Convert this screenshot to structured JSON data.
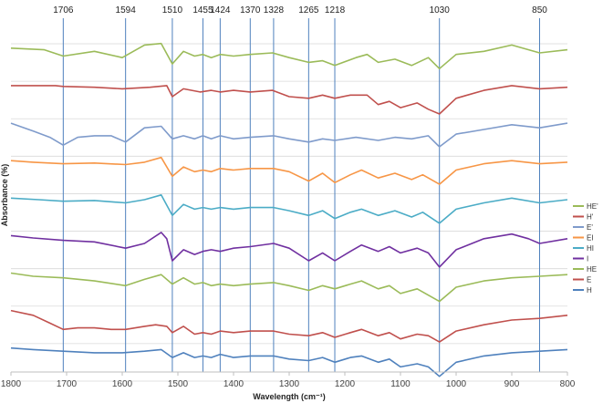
{
  "chart_data": {
    "type": "line",
    "title": "",
    "xlabel": "Wavelength (cm⁻¹)",
    "ylabel": "Absorbance (%)",
    "xlim": [
      1800,
      800
    ],
    "x_reversed": true,
    "x_ticks": [
      1800,
      1700,
      1600,
      1500,
      1400,
      1300,
      1200,
      1100,
      1000,
      900,
      800
    ],
    "y_tick_labels_shown": false,
    "grid": "horizontal baselines per spectrum",
    "legend_position": "right",
    "peak_markers": [
      1706,
      1594,
      1510,
      1455,
      1424,
      1370,
      1328,
      1265,
      1218,
      1030,
      850
    ],
    "series": [
      {
        "name": "HE'",
        "color": "#9BBB59",
        "offset": 8,
        "points": [
          [
            1800,
            0.0
          ],
          [
            1740,
            -0.1
          ],
          [
            1706,
            -0.5
          ],
          [
            1650,
            -0.2
          ],
          [
            1600,
            -0.6
          ],
          [
            1560,
            0.2
          ],
          [
            1530,
            0.3
          ],
          [
            1510,
            -1.0
          ],
          [
            1490,
            -0.2
          ],
          [
            1470,
            -0.5
          ],
          [
            1455,
            -0.4
          ],
          [
            1440,
            -0.6
          ],
          [
            1424,
            -0.4
          ],
          [
            1400,
            -0.5
          ],
          [
            1370,
            -0.4
          ],
          [
            1330,
            -0.3
          ],
          [
            1300,
            -0.6
          ],
          [
            1265,
            -0.9
          ],
          [
            1240,
            -0.8
          ],
          [
            1218,
            -1.1
          ],
          [
            1180,
            -0.6
          ],
          [
            1160,
            -0.4
          ],
          [
            1140,
            -0.9
          ],
          [
            1110,
            -0.7
          ],
          [
            1080,
            -1.1
          ],
          [
            1050,
            -0.6
          ],
          [
            1030,
            -1.3
          ],
          [
            1000,
            -0.4
          ],
          [
            950,
            -0.2
          ],
          [
            900,
            0.2
          ],
          [
            850,
            -0.3
          ],
          [
            800,
            -0.1
          ]
        ]
      },
      {
        "name": "H'",
        "color": "#C0504D",
        "offset": 7,
        "points": [
          [
            1800,
            0.0
          ],
          [
            1720,
            0.0
          ],
          [
            1706,
            -0.05
          ],
          [
            1650,
            -0.1
          ],
          [
            1600,
            -0.2
          ],
          [
            1550,
            -0.1
          ],
          [
            1520,
            0.0
          ],
          [
            1510,
            -0.7
          ],
          [
            1490,
            -0.2
          ],
          [
            1460,
            -0.4
          ],
          [
            1440,
            -0.3
          ],
          [
            1424,
            -0.4
          ],
          [
            1400,
            -0.3
          ],
          [
            1370,
            -0.4
          ],
          [
            1330,
            -0.3
          ],
          [
            1300,
            -0.7
          ],
          [
            1265,
            -0.8
          ],
          [
            1240,
            -0.6
          ],
          [
            1218,
            -0.8
          ],
          [
            1190,
            -0.6
          ],
          [
            1160,
            -0.6
          ],
          [
            1140,
            -1.2
          ],
          [
            1120,
            -1.0
          ],
          [
            1100,
            -1.4
          ],
          [
            1070,
            -1.1
          ],
          [
            1050,
            -1.5
          ],
          [
            1030,
            -1.8
          ],
          [
            1000,
            -0.8
          ],
          [
            950,
            -0.3
          ],
          [
            900,
            0.0
          ],
          [
            850,
            -0.2
          ],
          [
            800,
            -0.1
          ]
        ]
      },
      {
        "name": "E'",
        "color": "#8064A2",
        "offset": 6,
        "color_override": "#7F9BCB",
        "points": [
          [
            1800,
            0.0
          ],
          [
            1760,
            -0.5
          ],
          [
            1730,
            -0.9
          ],
          [
            1706,
            -1.4
          ],
          [
            1680,
            -0.9
          ],
          [
            1650,
            -0.8
          ],
          [
            1620,
            -0.8
          ],
          [
            1594,
            -1.2
          ],
          [
            1560,
            -0.3
          ],
          [
            1530,
            -0.2
          ],
          [
            1510,
            -1.0
          ],
          [
            1490,
            -0.8
          ],
          [
            1470,
            -1.0
          ],
          [
            1455,
            -0.8
          ],
          [
            1440,
            -1.0
          ],
          [
            1424,
            -0.8
          ],
          [
            1400,
            -1.0
          ],
          [
            1370,
            -0.9
          ],
          [
            1328,
            -0.8
          ],
          [
            1300,
            -1.0
          ],
          [
            1265,
            -1.2
          ],
          [
            1240,
            -1.0
          ],
          [
            1218,
            -1.1
          ],
          [
            1180,
            -0.9
          ],
          [
            1140,
            -1.1
          ],
          [
            1110,
            -0.9
          ],
          [
            1080,
            -1.0
          ],
          [
            1050,
            -0.8
          ],
          [
            1030,
            -1.5
          ],
          [
            1000,
            -0.7
          ],
          [
            950,
            -0.4
          ],
          [
            900,
            -0.1
          ],
          [
            850,
            -0.3
          ],
          [
            800,
            0.0
          ]
        ]
      },
      {
        "name": "EI",
        "color": "#F79646",
        "offset": 5,
        "points": [
          [
            1800,
            0.0
          ],
          [
            1760,
            -0.1
          ],
          [
            1706,
            -0.2
          ],
          [
            1650,
            -0.15
          ],
          [
            1594,
            -0.25
          ],
          [
            1560,
            -0.1
          ],
          [
            1530,
            0.2
          ],
          [
            1510,
            -1.0
          ],
          [
            1490,
            -0.4
          ],
          [
            1470,
            -0.7
          ],
          [
            1455,
            -0.6
          ],
          [
            1440,
            -0.7
          ],
          [
            1424,
            -0.5
          ],
          [
            1400,
            -0.6
          ],
          [
            1370,
            -0.5
          ],
          [
            1328,
            -0.5
          ],
          [
            1300,
            -0.7
          ],
          [
            1265,
            -1.3
          ],
          [
            1240,
            -0.8
          ],
          [
            1218,
            -1.4
          ],
          [
            1190,
            -0.9
          ],
          [
            1170,
            -0.6
          ],
          [
            1140,
            -1.1
          ],
          [
            1110,
            -0.8
          ],
          [
            1080,
            -1.2
          ],
          [
            1060,
            -0.9
          ],
          [
            1030,
            -1.5
          ],
          [
            1000,
            -0.6
          ],
          [
            950,
            -0.2
          ],
          [
            900,
            0.0
          ],
          [
            850,
            -0.2
          ],
          [
            800,
            -0.1
          ]
        ]
      },
      {
        "name": "HI",
        "color": "#4BACC6",
        "offset": 4,
        "points": [
          [
            1800,
            0.0
          ],
          [
            1750,
            -0.1
          ],
          [
            1706,
            -0.2
          ],
          [
            1650,
            -0.15
          ],
          [
            1594,
            -0.3
          ],
          [
            1560,
            -0.1
          ],
          [
            1530,
            0.2
          ],
          [
            1510,
            -1.1
          ],
          [
            1490,
            -0.4
          ],
          [
            1470,
            -0.7
          ],
          [
            1455,
            -0.6
          ],
          [
            1440,
            -0.7
          ],
          [
            1424,
            -0.6
          ],
          [
            1400,
            -0.7
          ],
          [
            1370,
            -0.6
          ],
          [
            1328,
            -0.6
          ],
          [
            1300,
            -0.8
          ],
          [
            1265,
            -1.1
          ],
          [
            1240,
            -0.8
          ],
          [
            1218,
            -1.3
          ],
          [
            1190,
            -0.9
          ],
          [
            1170,
            -0.7
          ],
          [
            1140,
            -1.1
          ],
          [
            1110,
            -0.8
          ],
          [
            1080,
            -1.2
          ],
          [
            1060,
            -0.9
          ],
          [
            1030,
            -1.6
          ],
          [
            1000,
            -0.7
          ],
          [
            950,
            -0.3
          ],
          [
            900,
            0.0
          ],
          [
            850,
            -0.3
          ],
          [
            800,
            -0.1
          ]
        ]
      },
      {
        "name": "I",
        "color": "#7030A0",
        "offset": 3,
        "points": [
          [
            1800,
            0.0
          ],
          [
            1760,
            -0.15
          ],
          [
            1706,
            -0.3
          ],
          [
            1650,
            -0.4
          ],
          [
            1594,
            -0.8
          ],
          [
            1560,
            -0.5
          ],
          [
            1530,
            0.2
          ],
          [
            1520,
            -0.2
          ],
          [
            1510,
            -1.6
          ],
          [
            1490,
            -0.9
          ],
          [
            1470,
            -1.2
          ],
          [
            1455,
            -1.0
          ],
          [
            1440,
            -0.9
          ],
          [
            1424,
            -1.0
          ],
          [
            1400,
            -0.8
          ],
          [
            1370,
            -0.7
          ],
          [
            1328,
            -0.5
          ],
          [
            1300,
            -0.8
          ],
          [
            1265,
            -1.6
          ],
          [
            1240,
            -1.1
          ],
          [
            1218,
            -1.6
          ],
          [
            1190,
            -1.0
          ],
          [
            1170,
            -0.6
          ],
          [
            1140,
            -1.0
          ],
          [
            1120,
            -0.7
          ],
          [
            1100,
            -1.1
          ],
          [
            1070,
            -0.8
          ],
          [
            1050,
            -1.1
          ],
          [
            1030,
            -2.0
          ],
          [
            1000,
            -0.9
          ],
          [
            950,
            -0.2
          ],
          [
            900,
            0.1
          ],
          [
            870,
            -0.2
          ],
          [
            850,
            -0.5
          ],
          [
            800,
            -0.2
          ]
        ]
      },
      {
        "name": "HE",
        "color": "#9BBB59",
        "offset": 2,
        "points": [
          [
            1800,
            0.0
          ],
          [
            1760,
            -0.2
          ],
          [
            1706,
            -0.3
          ],
          [
            1650,
            -0.5
          ],
          [
            1594,
            -0.8
          ],
          [
            1560,
            -0.4
          ],
          [
            1530,
            -0.1
          ],
          [
            1510,
            -0.7
          ],
          [
            1490,
            -0.3
          ],
          [
            1470,
            -0.7
          ],
          [
            1455,
            -0.6
          ],
          [
            1440,
            -0.8
          ],
          [
            1424,
            -0.7
          ],
          [
            1400,
            -0.8
          ],
          [
            1370,
            -0.7
          ],
          [
            1328,
            -0.6
          ],
          [
            1300,
            -0.8
          ],
          [
            1265,
            -1.1
          ],
          [
            1240,
            -0.8
          ],
          [
            1218,
            -1.0
          ],
          [
            1190,
            -0.7
          ],
          [
            1170,
            -0.5
          ],
          [
            1140,
            -1.0
          ],
          [
            1120,
            -0.8
          ],
          [
            1100,
            -1.3
          ],
          [
            1070,
            -1.0
          ],
          [
            1050,
            -1.4
          ],
          [
            1030,
            -1.8
          ],
          [
            1000,
            -0.9
          ],
          [
            950,
            -0.5
          ],
          [
            900,
            -0.3
          ],
          [
            850,
            -0.2
          ],
          [
            800,
            -0.1
          ]
        ]
      },
      {
        "name": "E",
        "color": "#C0504D",
        "offset": 1,
        "points": [
          [
            1800,
            0.0
          ],
          [
            1760,
            -0.3
          ],
          [
            1730,
            -0.8
          ],
          [
            1706,
            -1.2
          ],
          [
            1680,
            -1.1
          ],
          [
            1650,
            -1.1
          ],
          [
            1620,
            -1.2
          ],
          [
            1594,
            -1.2
          ],
          [
            1560,
            -1.0
          ],
          [
            1540,
            -0.9
          ],
          [
            1520,
            -1.0
          ],
          [
            1510,
            -1.4
          ],
          [
            1490,
            -1.0
          ],
          [
            1470,
            -1.5
          ],
          [
            1455,
            -1.4
          ],
          [
            1440,
            -1.5
          ],
          [
            1424,
            -1.3
          ],
          [
            1400,
            -1.4
          ],
          [
            1370,
            -1.3
          ],
          [
            1328,
            -1.3
          ],
          [
            1300,
            -1.5
          ],
          [
            1265,
            -1.6
          ],
          [
            1240,
            -1.4
          ],
          [
            1218,
            -1.7
          ],
          [
            1190,
            -1.4
          ],
          [
            1170,
            -1.2
          ],
          [
            1140,
            -1.6
          ],
          [
            1120,
            -1.4
          ],
          [
            1100,
            -1.8
          ],
          [
            1070,
            -1.5
          ],
          [
            1050,
            -1.6
          ],
          [
            1030,
            -2.0
          ],
          [
            1000,
            -1.3
          ],
          [
            950,
            -0.9
          ],
          [
            900,
            -0.6
          ],
          [
            850,
            -0.5
          ],
          [
            800,
            -0.3
          ]
        ]
      },
      {
        "name": "H",
        "color": "#4F81BD",
        "offset": 0,
        "points": [
          [
            1800,
            0.0
          ],
          [
            1760,
            -0.1
          ],
          [
            1706,
            -0.2
          ],
          [
            1650,
            -0.3
          ],
          [
            1600,
            -0.3
          ],
          [
            1560,
            -0.2
          ],
          [
            1530,
            -0.1
          ],
          [
            1510,
            -0.6
          ],
          [
            1490,
            -0.3
          ],
          [
            1470,
            -0.6
          ],
          [
            1455,
            -0.5
          ],
          [
            1440,
            -0.6
          ],
          [
            1424,
            -0.4
          ],
          [
            1400,
            -0.6
          ],
          [
            1370,
            -0.5
          ],
          [
            1328,
            -0.5
          ],
          [
            1300,
            -0.7
          ],
          [
            1265,
            -0.8
          ],
          [
            1240,
            -0.6
          ],
          [
            1218,
            -0.9
          ],
          [
            1190,
            -0.6
          ],
          [
            1170,
            -0.5
          ],
          [
            1140,
            -0.9
          ],
          [
            1120,
            -0.7
          ],
          [
            1100,
            -1.2
          ],
          [
            1070,
            -1.0
          ],
          [
            1050,
            -1.2
          ],
          [
            1030,
            -1.8
          ],
          [
            1000,
            -0.9
          ],
          [
            950,
            -0.5
          ],
          [
            900,
            -0.3
          ],
          [
            850,
            -0.2
          ],
          [
            800,
            -0.1
          ]
        ]
      }
    ]
  }
}
